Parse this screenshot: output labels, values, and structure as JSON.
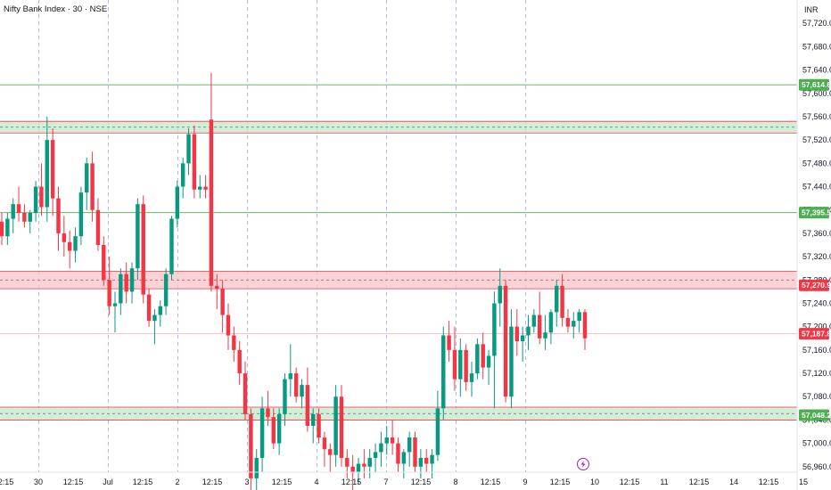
{
  "header": {
    "title": "Nifty Bank Index · 30 · NSE",
    "currency": "INR"
  },
  "colors": {
    "up": "#089981",
    "down": "#f23645",
    "support_line": "#4caf50",
    "zone_green": "#c8e6c9",
    "zone_red": "#f7c6c9",
    "badge_green": "#4caf50",
    "badge_red": "#f23645",
    "session_line": "#7986cb",
    "lightning": "#9c27b0"
  },
  "icons": {
    "event_marker": "lightning-icon"
  },
  "chart_data": {
    "type": "candlestick",
    "title": "Nifty Bank Index · 30 · NSE",
    "ylim": [
      56920,
      57760
    ],
    "y_ticks": [
      "56,960.00",
      "57,000.00",
      "57,040.00",
      "57,080.00",
      "57,120.00",
      "57,160.00",
      "57,200.00",
      "57,240.00",
      "57,280.00",
      "57,320.00",
      "57,360.00",
      "57,400.00",
      "57,440.00",
      "57,480.00",
      "57,520.00",
      "57,560.00",
      "57,600.00",
      "57,640.00",
      "57,680.00",
      "57,720.00"
    ],
    "x_ticks": [
      "12:15",
      "30",
      "12:15",
      "Jul",
      "12:15",
      "2",
      "12:15",
      "3",
      "12:15",
      "4",
      "12:15",
      "7",
      "12:15",
      "8",
      "12:15",
      "9",
      "12:15",
      "10",
      "12:15",
      "11",
      "12:15",
      "14",
      "12:15",
      "15"
    ],
    "session_starts": [
      1,
      3,
      5,
      7,
      9,
      11,
      13,
      15
    ],
    "horizontal_levels": [
      {
        "value": 57614.6,
        "label": "57,614.60",
        "kind": "line",
        "color": "green"
      },
      {
        "value": 57395.5,
        "label": "57,395.50",
        "kind": "line",
        "color": "green"
      },
      {
        "value": 57270.95,
        "label": "57,270.95",
        "kind": "zone",
        "range": [
          57265,
          57295
        ],
        "color": "red"
      },
      {
        "value": 57187.85,
        "label": "57,187.85",
        "kind": "current",
        "color": "red"
      },
      {
        "value": 57048.2,
        "label": "57,048.20",
        "kind": "zone",
        "range": [
          57040,
          57062
        ],
        "color": "green"
      }
    ],
    "zones_unlabeled": [
      {
        "range": [
          57532,
          57552
        ],
        "color": "green"
      }
    ],
    "candles": [
      [
        57380,
        57395,
        57340,
        57355
      ],
      [
        57355,
        57395,
        57340,
        57385
      ],
      [
        57385,
        57420,
        57360,
        57410
      ],
      [
        57410,
        57440,
        57380,
        57395
      ],
      [
        57395,
        57410,
        57370,
        57380
      ],
      [
        57380,
        57400,
        57360,
        57395
      ],
      [
        57395,
        57450,
        57380,
        57440
      ],
      [
        57440,
        57480,
        57390,
        57405
      ],
      [
        57405,
        57560,
        57380,
        57520
      ],
      [
        57520,
        57540,
        57390,
        57420
      ],
      [
        57420,
        57440,
        57330,
        57360
      ],
      [
        57360,
        57390,
        57320,
        57345
      ],
      [
        57345,
        57365,
        57300,
        57330
      ],
      [
        57330,
        57370,
        57310,
        57355
      ],
      [
        57355,
        57440,
        57340,
        57430
      ],
      [
        57430,
        57490,
        57400,
        57480
      ],
      [
        57480,
        57500,
        57380,
        57400
      ],
      [
        57400,
        57420,
        57330,
        57340
      ],
      [
        57340,
        57355,
        57270,
        57280
      ],
      [
        57280,
        57320,
        57220,
        57235
      ],
      [
        57235,
        57260,
        57190,
        57240
      ],
      [
        57240,
        57300,
        57220,
        57290
      ],
      [
        57290,
        57310,
        57240,
        57260
      ],
      [
        57260,
        57310,
        57240,
        57300
      ],
      [
        57300,
        57420,
        57280,
        57410
      ],
      [
        57410,
        57425,
        57240,
        57255
      ],
      [
        57255,
        57265,
        57200,
        57210
      ],
      [
        57210,
        57230,
        57170,
        57220
      ],
      [
        57220,
        57245,
        57200,
        57235
      ],
      [
        57235,
        57300,
        57220,
        57290
      ],
      [
        57290,
        57390,
        57280,
        57385
      ],
      [
        57385,
        57450,
        57370,
        57440
      ],
      [
        57440,
        57490,
        57420,
        57480
      ],
      [
        57480,
        57540,
        57460,
        57530
      ],
      [
        57530,
        57545,
        57420,
        57435
      ],
      [
        57435,
        57460,
        57420,
        57440
      ],
      [
        57440,
        57460,
        57420,
        57435
      ],
      [
        57555,
        57635,
        57260,
        57270
      ],
      [
        57270,
        57290,
        57230,
        57265
      ],
      [
        57265,
        57280,
        57190,
        57220
      ],
      [
        57220,
        57240,
        57160,
        57185
      ],
      [
        57185,
        57200,
        57140,
        57160
      ],
      [
        57160,
        57175,
        57100,
        57120
      ],
      [
        57120,
        57140,
        57040,
        57050
      ],
      [
        57050,
        57060,
        56920,
        56940
      ],
      [
        56940,
        56990,
        56920,
        56975
      ],
      [
        56975,
        57080,
        56950,
        57060
      ],
      [
        57060,
        57090,
        57030,
        57045
      ],
      [
        57045,
        57060,
        56990,
        57000
      ],
      [
        57000,
        57060,
        56980,
        57050
      ],
      [
        57050,
        57120,
        57030,
        57110
      ],
      [
        57110,
        57170,
        57080,
        57120
      ],
      [
        57120,
        57130,
        57070,
        57080
      ],
      [
        57080,
        57110,
        57060,
        57100
      ],
      [
        57100,
        57130,
        57020,
        57030
      ],
      [
        57030,
        57060,
        57000,
        57050
      ],
      [
        57050,
        57060,
        57000,
        57010
      ],
      [
        57010,
        57020,
        56960,
        56990
      ],
      [
        56990,
        57000,
        56950,
        56980
      ],
      [
        56980,
        57100,
        56960,
        57080
      ],
      [
        57080,
        57100,
        56960,
        56975
      ],
      [
        56975,
        56990,
        56940,
        56960
      ],
      [
        56960,
        56980,
        56920,
        56950
      ],
      [
        56950,
        56975,
        56930,
        56965
      ],
      [
        56965,
        56990,
        56940,
        56960
      ],
      [
        56960,
        56990,
        56940,
        56975
      ],
      [
        56975,
        57000,
        56950,
        56985
      ],
      [
        56985,
        57020,
        56960,
        57000
      ],
      [
        57000,
        57030,
        56980,
        57010
      ],
      [
        57010,
        57040,
        56980,
        57000
      ],
      [
        57000,
        57010,
        56950,
        56965
      ],
      [
        56965,
        56990,
        56940,
        56985
      ],
      [
        56985,
        57020,
        56960,
        57010
      ],
      [
        57010,
        57020,
        56950,
        56960
      ],
      [
        56960,
        56990,
        56940,
        56975
      ],
      [
        56975,
        56990,
        56950,
        56965
      ],
      [
        56965,
        56990,
        56940,
        56980
      ],
      [
        56980,
        57090,
        56970,
        57060
      ],
      [
        57060,
        57200,
        57040,
        57185
      ],
      [
        57185,
        57210,
        57140,
        57160
      ],
      [
        57160,
        57200,
        57090,
        57110
      ],
      [
        57110,
        57180,
        57080,
        57160
      ],
      [
        57160,
        57170,
        57090,
        57105
      ],
      [
        57105,
        57140,
        57080,
        57120
      ],
      [
        57120,
        57180,
        57110,
        57170
      ],
      [
        57170,
        57190,
        57110,
        57130
      ],
      [
        57130,
        57160,
        57100,
        57150
      ],
      [
        57150,
        57260,
        57060,
        57240
      ],
      [
        57240,
        57300,
        57200,
        57270
      ],
      [
        57270,
        57280,
        57070,
        57080
      ],
      [
        57080,
        57230,
        57060,
        57200
      ],
      [
        57200,
        57230,
        57150,
        57175
      ],
      [
        57175,
        57200,
        57140,
        57185
      ],
      [
        57185,
        57220,
        57160,
        57200
      ],
      [
        57200,
        57230,
        57190,
        57220
      ],
      [
        57220,
        57260,
        57170,
        57180
      ],
      [
        57180,
        57220,
        57160,
        57190
      ],
      [
        57190,
        57230,
        57170,
        57225
      ],
      [
        57225,
        57280,
        57200,
        57270
      ],
      [
        57270,
        57290,
        57200,
        57215
      ],
      [
        57215,
        57230,
        57190,
        57200
      ],
      [
        57200,
        57225,
        57180,
        57210
      ],
      [
        57210,
        57230,
        57190,
        57225
      ],
      [
        57225,
        57230,
        57160,
        57180
      ]
    ]
  }
}
